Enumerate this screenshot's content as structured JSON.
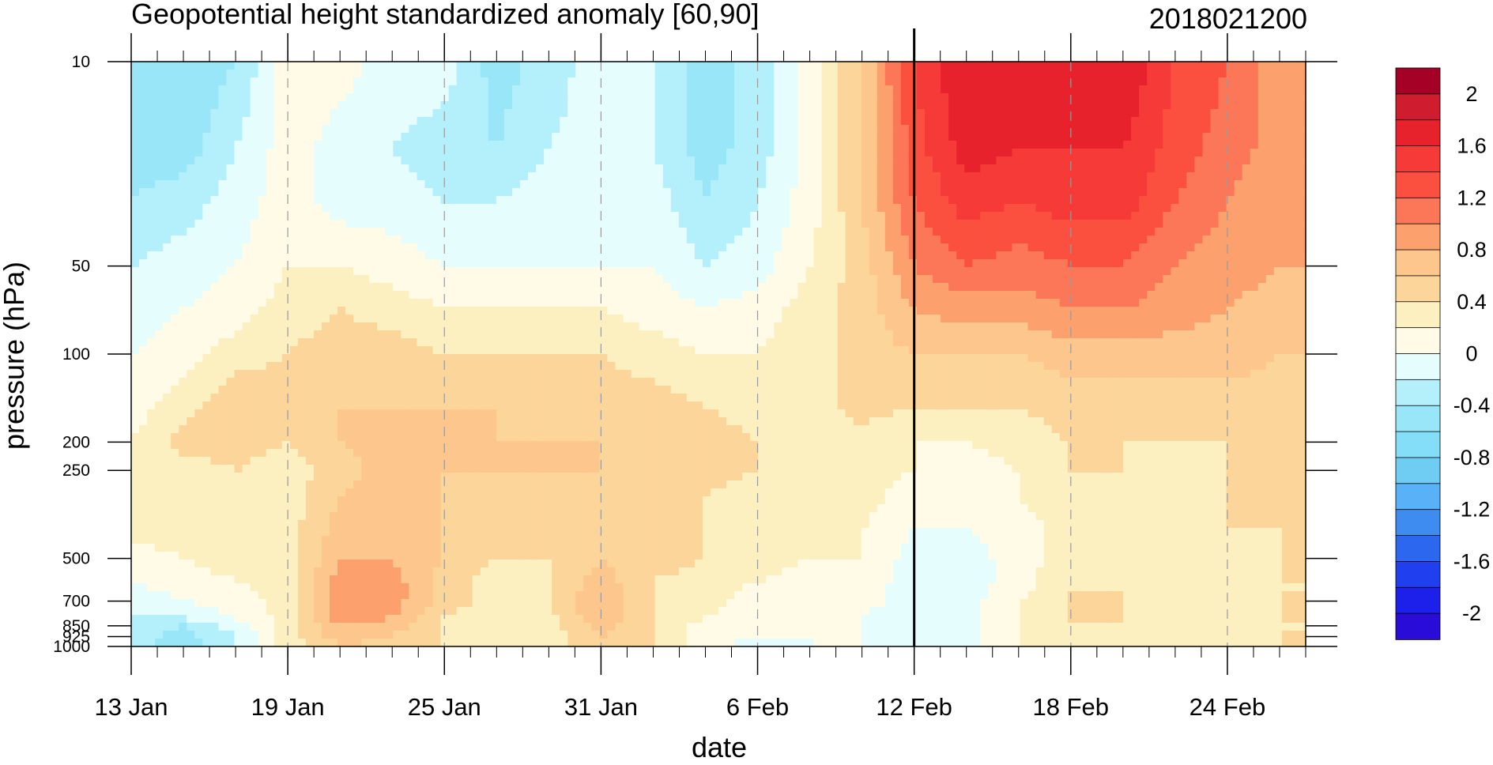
{
  "chart_data": {
    "type": "heatmap",
    "subtype": "filled-contour",
    "title": "Geopotential height standardized anomaly [60,90]",
    "date_stamp": "2018021200",
    "xlabel": "date",
    "ylabel": "pressure (hPa)",
    "x_range": [
      "2018-01-13",
      "2018-02-27"
    ],
    "x_ticks": [
      {
        "date": "2018-01-13",
        "label": "13 Jan"
      },
      {
        "date": "2018-01-19",
        "label": "19 Jan"
      },
      {
        "date": "2018-01-25",
        "label": "25 Jan"
      },
      {
        "date": "2018-01-31",
        "label": "31 Jan"
      },
      {
        "date": "2018-02-06",
        "label": "6 Feb"
      },
      {
        "date": "2018-02-12",
        "label": "12 Feb"
      },
      {
        "date": "2018-02-18",
        "label": "18 Feb"
      },
      {
        "date": "2018-02-24",
        "label": "24 Feb"
      }
    ],
    "y_scale": "log",
    "y_reversed": true,
    "y_range": [
      1000,
      10
    ],
    "y_ticks": [
      {
        "value": 10,
        "label": "10"
      },
      {
        "value": 50,
        "label": "50"
      },
      {
        "value": 100,
        "label": "100"
      },
      {
        "value": 200,
        "label": "200"
      },
      {
        "value": 250,
        "label": "250"
      },
      {
        "value": 500,
        "label": "500"
      },
      {
        "value": 700,
        "label": "700"
      },
      {
        "value": 850,
        "label": "850"
      },
      {
        "value": 925,
        "label": "925"
      },
      {
        "value": 1000,
        "label": "1000"
      }
    ],
    "grid": "dashed vertical lines at labeled dates",
    "analysis_date_line": "2018-02-12",
    "levels": [
      -2.2,
      -2,
      -1.8,
      -1.6,
      -1.4,
      -1.2,
      -1,
      -0.8,
      -0.6,
      -0.4,
      -0.2,
      0,
      0.2,
      0.4,
      0.6,
      0.8,
      1,
      1.2,
      1.4,
      1.6,
      1.8,
      2,
      2.2
    ],
    "colorbar": {
      "placement": "right",
      "labels": [
        {
          "value": 2,
          "label": "2"
        },
        {
          "value": 1.6,
          "label": "1.6"
        },
        {
          "value": 1.2,
          "label": "1.2"
        },
        {
          "value": 0.8,
          "label": "0.8"
        },
        {
          "value": 0.4,
          "label": "0.4"
        },
        {
          "value": 0,
          "label": "0"
        },
        {
          "value": -0.4,
          "label": "-0.4"
        },
        {
          "value": -0.8,
          "label": "-0.8"
        },
        {
          "value": -1.2,
          "label": "-1.2"
        },
        {
          "value": -1.6,
          "label": "-1.6"
        },
        {
          "value": -2,
          "label": "-2"
        }
      ],
      "colors": [
        "#a50026",
        "#d01c2f",
        "#e8222c",
        "#f53a37",
        "#fb503f",
        "#fc7658",
        "#fca06e",
        "#fdc68c",
        "#fcd59b",
        "#fdf0c0",
        "#fffbe6",
        "#e6fdfe",
        "#b4f0fb",
        "#98e6f8",
        "#85def8",
        "#6fcdf4",
        "#59b2f7",
        "#3f8cf0",
        "#2c67ef",
        "#2040f0",
        "#1d1fea",
        "#2a0cd8"
      ]
    },
    "profile_levels_hPa": [
      10,
      20,
      30,
      50,
      70,
      100,
      150,
      200,
      250,
      300,
      400,
      500,
      600,
      700,
      800,
      850,
      925,
      1000
    ],
    "series": [
      {
        "date": "2018-01-13",
        "values": [
          -0.6,
          -0.5,
          -0.4,
          -0.2,
          -0.1,
          0.0,
          0.1,
          0.2,
          0.3,
          0.3,
          0.3,
          0.1,
          0.0,
          -0.1,
          -0.2,
          -0.3,
          -0.3,
          -0.3
        ]
      },
      {
        "date": "2018-01-15",
        "values": [
          -0.6,
          -0.5,
          -0.3,
          -0.1,
          0.0,
          0.1,
          0.3,
          0.5,
          0.3,
          0.3,
          0.3,
          0.2,
          0.1,
          0.0,
          -0.2,
          -0.4,
          -0.5,
          -0.5
        ]
      },
      {
        "date": "2018-01-17",
        "values": [
          -0.4,
          -0.2,
          -0.1,
          0.0,
          0.1,
          0.3,
          0.6,
          0.5,
          0.4,
          0.3,
          0.3,
          0.3,
          0.2,
          0.1,
          0.0,
          -0.1,
          -0.2,
          -0.2
        ]
      },
      {
        "date": "2018-01-19",
        "values": [
          0.1,
          0.1,
          0.1,
          0.2,
          0.3,
          0.4,
          0.5,
          0.4,
          0.3,
          0.3,
          0.3,
          0.3,
          0.3,
          0.3,
          0.3,
          0.3,
          0.3,
          0.3
        ]
      },
      {
        "date": "2018-01-21",
        "values": [
          0.1,
          -0.1,
          -0.1,
          0.2,
          0.4,
          0.5,
          0.6,
          0.6,
          0.5,
          0.6,
          0.7,
          0.8,
          0.9,
          0.9,
          0.9,
          0.8,
          0.7,
          0.6
        ]
      },
      {
        "date": "2018-01-23",
        "values": [
          -0.1,
          -0.2,
          -0.1,
          0.1,
          0.3,
          0.5,
          0.6,
          0.7,
          0.7,
          0.7,
          0.7,
          0.8,
          0.9,
          0.9,
          0.8,
          0.7,
          0.6,
          0.5
        ]
      },
      {
        "date": "2018-01-25",
        "values": [
          -0.1,
          -0.3,
          -0.2,
          0.0,
          0.2,
          0.4,
          0.6,
          0.6,
          0.6,
          0.6,
          0.6,
          0.6,
          0.5,
          0.5,
          0.4,
          0.4,
          0.4,
          0.4
        ]
      },
      {
        "date": "2018-01-27",
        "values": [
          -0.5,
          -0.4,
          -0.2,
          0.0,
          0.2,
          0.4,
          0.6,
          0.6,
          0.6,
          0.5,
          0.4,
          0.4,
          0.3,
          0.3,
          0.3,
          0.3,
          0.3,
          0.3
        ]
      },
      {
        "date": "2018-01-29",
        "values": [
          -0.3,
          -0.2,
          -0.1,
          0.0,
          0.2,
          0.4,
          0.5,
          0.6,
          0.6,
          0.5,
          0.4,
          0.4,
          0.4,
          0.4,
          0.3,
          0.3,
          0.3,
          0.3
        ]
      },
      {
        "date": "2018-01-31",
        "values": [
          -0.1,
          -0.1,
          -0.1,
          0.0,
          0.2,
          0.4,
          0.5,
          0.6,
          0.6,
          0.6,
          0.6,
          0.6,
          0.7,
          0.8,
          0.8,
          0.7,
          0.6,
          0.5
        ]
      },
      {
        "date": "2018-02-02",
        "values": [
          -0.2,
          -0.2,
          -0.1,
          0.0,
          0.1,
          0.3,
          0.5,
          0.5,
          0.5,
          0.5,
          0.5,
          0.5,
          0.4,
          0.4,
          0.4,
          0.4,
          0.4,
          0.4
        ]
      },
      {
        "date": "2018-02-04",
        "values": [
          -0.5,
          -0.5,
          -0.4,
          -0.2,
          0.0,
          0.2,
          0.4,
          0.5,
          0.5,
          0.4,
          0.4,
          0.4,
          0.3,
          0.3,
          0.2,
          0.1,
          0.1,
          0.1
        ]
      },
      {
        "date": "2018-02-06",
        "values": [
          -0.3,
          -0.3,
          -0.2,
          -0.1,
          0.1,
          0.2,
          0.3,
          0.4,
          0.4,
          0.3,
          0.3,
          0.3,
          0.2,
          0.1,
          0.0,
          0.0,
          0.0,
          -0.1
        ]
      },
      {
        "date": "2018-02-08",
        "values": [
          0.1,
          0.1,
          0.1,
          0.2,
          0.3,
          0.3,
          0.3,
          0.3,
          0.3,
          0.3,
          0.2,
          0.2,
          0.1,
          0.1,
          0.0,
          0.0,
          0.0,
          0.0
        ]
      },
      {
        "date": "2018-02-10",
        "values": [
          0.6,
          0.6,
          0.6,
          0.5,
          0.5,
          0.5,
          0.5,
          0.3,
          0.3,
          0.3,
          0.2,
          0.2,
          0.1,
          0.1,
          0.0,
          0.0,
          0.0,
          0.0
        ]
      },
      {
        "date": "2018-02-12",
        "values": [
          1.4,
          1.3,
          1.2,
          1.0,
          0.8,
          0.6,
          0.4,
          0.2,
          0.2,
          0.1,
          0.0,
          -0.1,
          -0.1,
          -0.1,
          -0.2,
          -0.2,
          -0.2,
          -0.2
        ]
      },
      {
        "date": "2018-02-14",
        "values": [
          1.8,
          1.7,
          1.5,
          1.2,
          0.9,
          0.6,
          0.4,
          0.2,
          0.1,
          0.1,
          0.0,
          -0.1,
          -0.1,
          -0.1,
          -0.1,
          -0.1,
          -0.1,
          -0.1
        ]
      },
      {
        "date": "2018-02-16",
        "values": [
          1.7,
          1.6,
          1.4,
          1.1,
          0.9,
          0.6,
          0.4,
          0.3,
          0.2,
          0.2,
          0.1,
          0.1,
          0.1,
          0.2,
          0.2,
          0.2,
          0.2,
          0.2
        ]
      },
      {
        "date": "2018-02-18",
        "values": [
          1.6,
          1.6,
          1.5,
          1.2,
          1.0,
          0.7,
          0.5,
          0.4,
          0.4,
          0.4,
          0.3,
          0.3,
          0.4,
          0.4,
          0.4,
          0.4,
          0.3,
          0.3
        ]
      },
      {
        "date": "2018-02-20",
        "values": [
          1.8,
          1.6,
          1.5,
          1.2,
          1.0,
          0.7,
          0.5,
          0.4,
          0.4,
          0.3,
          0.3,
          0.3,
          0.4,
          0.4,
          0.4,
          0.4,
          0.4,
          0.4
        ]
      },
      {
        "date": "2018-02-22",
        "values": [
          1.4,
          1.3,
          1.2,
          1.0,
          0.9,
          0.7,
          0.5,
          0.4,
          0.3,
          0.3,
          0.3,
          0.3,
          0.3,
          0.3,
          0.3,
          0.3,
          0.3,
          0.3
        ]
      },
      {
        "date": "2018-02-24",
        "values": [
          1.2,
          1.1,
          1.0,
          0.9,
          0.8,
          0.7,
          0.5,
          0.4,
          0.4,
          0.4,
          0.4,
          0.3,
          0.3,
          0.3,
          0.3,
          0.3,
          0.3,
          0.3
        ]
      },
      {
        "date": "2018-02-26",
        "values": [
          0.9,
          0.9,
          0.8,
          0.8,
          0.7,
          0.6,
          0.5,
          0.4,
          0.4,
          0.4,
          0.4,
          0.4,
          0.4,
          0.4,
          0.4,
          0.4,
          0.4,
          0.4
        ]
      },
      {
        "date": "2018-02-27",
        "values": [
          0.9,
          0.9,
          0.8,
          0.8,
          0.7,
          0.6,
          0.5,
          0.5,
          0.4,
          0.4,
          0.4,
          0.4,
          0.4,
          0.4,
          0.4,
          0.4,
          0.4,
          0.4
        ]
      }
    ]
  }
}
